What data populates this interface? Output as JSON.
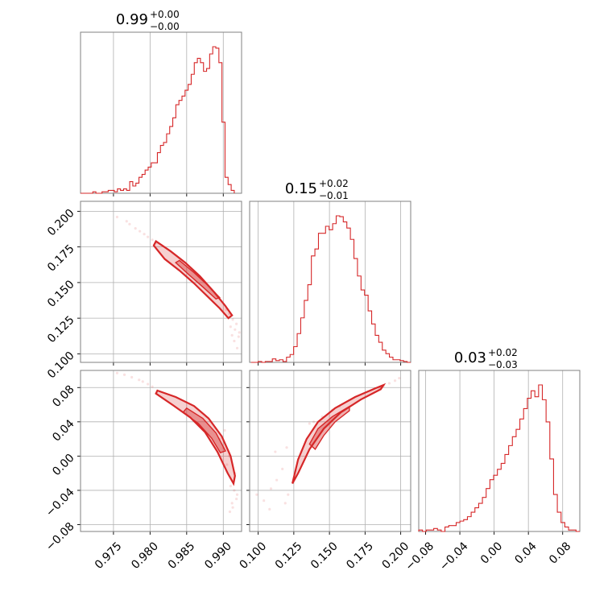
{
  "chart_data": {
    "type": "corner",
    "color": "#d62728",
    "parameters": [
      {
        "title": {
          "value": "0.99",
          "plus": "+0.00",
          "minus": "−0.00"
        },
        "range": [
          0.9705,
          0.9925
        ],
        "ticks": [
          0.975,
          0.98,
          0.985,
          0.99
        ],
        "tick_labels": [
          "0.975",
          "0.980",
          "0.985",
          "0.990"
        ]
      },
      {
        "title": {
          "value": "0.15",
          "plus": "+0.02",
          "minus": "−0.01"
        },
        "range": [
          0.094,
          0.207
        ],
        "ticks": [
          0.1,
          0.125,
          0.15,
          0.175,
          0.2
        ],
        "tick_labels": [
          "0.100",
          "0.125",
          "0.150",
          "0.175",
          "0.200"
        ]
      },
      {
        "title": {
          "value": "0.03",
          "plus": "+0.02",
          "minus": "−0.03"
        },
        "range": [
          -0.088,
          0.1
        ],
        "ticks": [
          -0.08,
          -0.04,
          0.0,
          0.04,
          0.08
        ],
        "tick_labels": [
          "−0.08",
          "−0.04",
          "0.00",
          "0.04",
          "0.08"
        ]
      }
    ],
    "histograms": [
      {
        "param": 0,
        "edges": [
          0.9705,
          0.9915
        ],
        "counts": [
          0,
          0,
          0,
          0,
          1,
          0,
          0,
          1,
          1,
          2,
          2,
          1,
          3,
          2,
          3,
          2,
          8,
          5,
          7,
          11,
          13,
          16,
          18,
          21,
          21,
          28,
          33,
          35,
          41,
          46,
          52,
          61,
          64,
          67,
          71,
          75,
          82,
          90,
          93,
          90,
          84,
          86,
          96,
          101,
          100,
          90,
          49,
          11,
          6,
          2
        ]
      },
      {
        "param": 1,
        "edges": [
          0.095,
          0.207
        ],
        "counts": [
          0,
          0,
          1,
          0,
          1,
          1,
          4,
          2,
          3,
          1,
          6,
          9,
          18,
          33,
          51,
          71,
          89,
          122,
          130,
          148,
          148,
          156,
          152,
          159,
          168,
          167,
          161,
          154,
          141,
          119,
          99,
          83,
          77,
          59,
          44,
          31,
          23,
          14,
          10,
          6,
          3,
          3,
          2,
          1,
          0
        ]
      },
      {
        "param": 2,
        "edges": [
          -0.088,
          0.1
        ],
        "counts": [
          1,
          0,
          1,
          1,
          2,
          1,
          0,
          3,
          4,
          4,
          6,
          7,
          8,
          10,
          13,
          16,
          19,
          23,
          29,
          35,
          38,
          42,
          46,
          52,
          58,
          64,
          69,
          76,
          83,
          90,
          95,
          91,
          99,
          89,
          74,
          49,
          25,
          13,
          6,
          3,
          1,
          1,
          0
        ]
      }
    ],
    "scatter_panels": [
      {
        "x_param": 0,
        "y_param": 1,
        "points": [
          [
            0.9755,
            0.196
          ],
          [
            0.9768,
            0.193
          ],
          [
            0.9772,
            0.191
          ],
          [
            0.978,
            0.188
          ],
          [
            0.9786,
            0.186
          ],
          [
            0.9792,
            0.184
          ],
          [
            0.9797,
            0.182
          ],
          [
            0.9803,
            0.18
          ],
          [
            0.9808,
            0.178
          ],
          [
            0.9913,
            0.124
          ],
          [
            0.9918,
            0.121
          ],
          [
            0.9916,
            0.117
          ],
          [
            0.9921,
            0.112
          ],
          [
            0.9908,
            0.128
          ],
          [
            0.9915,
            0.109
          ],
          [
            0.9919,
            0.104
          ],
          [
            0.991,
            0.119
          ],
          [
            0.9904,
            0.131
          ],
          [
            0.9922,
            0.115
          ],
          [
            0.9912,
            0.113
          ]
        ],
        "outer": [
          [
            0.9808,
            0.179
          ],
          [
            0.9828,
            0.172
          ],
          [
            0.9848,
            0.164
          ],
          [
            0.9868,
            0.1545
          ],
          [
            0.9888,
            0.143
          ],
          [
            0.9903,
            0.1335
          ],
          [
            0.9912,
            0.127
          ],
          [
            0.9907,
            0.125
          ],
          [
            0.9895,
            0.132
          ],
          [
            0.9878,
            0.1405
          ],
          [
            0.986,
            0.1495
          ],
          [
            0.984,
            0.1585
          ],
          [
            0.982,
            0.1665
          ],
          [
            0.9805,
            0.176
          ]
        ],
        "inner": [
          [
            0.984,
            0.1655
          ],
          [
            0.986,
            0.157
          ],
          [
            0.988,
            0.1475
          ],
          [
            0.9895,
            0.1395
          ],
          [
            0.989,
            0.1385
          ],
          [
            0.9873,
            0.1465
          ],
          [
            0.9853,
            0.1555
          ],
          [
            0.9835,
            0.164
          ]
        ]
      },
      {
        "x_param": 0,
        "y_param": 2,
        "points": [
          [
            0.9755,
            0.097
          ],
          [
            0.9765,
            0.095
          ],
          [
            0.9775,
            0.092
          ],
          [
            0.9785,
            0.089
          ],
          [
            0.979,
            0.087
          ],
          [
            0.9797,
            0.084
          ],
          [
            0.9803,
            0.081
          ],
          [
            0.9915,
            -0.04
          ],
          [
            0.9918,
            -0.05
          ],
          [
            0.9913,
            -0.06
          ],
          [
            0.9919,
            -0.045
          ],
          [
            0.991,
            -0.035
          ],
          [
            0.9905,
            -0.01
          ],
          [
            0.99,
            0.01
          ],
          [
            0.9895,
            0.02
          ],
          [
            0.9908,
            0.0
          ],
          [
            0.9902,
            0.03
          ],
          [
            0.9916,
            -0.02
          ],
          [
            0.9912,
            -0.055
          ],
          [
            0.9909,
            -0.065
          ]
        ],
        "outer": [
          [
            0.981,
            0.0765
          ],
          [
            0.9835,
            0.069
          ],
          [
            0.986,
            0.0585
          ],
          [
            0.988,
            0.044
          ],
          [
            0.9898,
            0.023
          ],
          [
            0.991,
            0.0
          ],
          [
            0.9916,
            -0.023
          ],
          [
            0.9914,
            -0.032
          ],
          [
            0.9906,
            -0.02
          ],
          [
            0.9892,
            0.005
          ],
          [
            0.9875,
            0.028
          ],
          [
            0.9855,
            0.045
          ],
          [
            0.9832,
            0.059
          ],
          [
            0.9808,
            0.073
          ]
        ],
        "inner": [
          [
            0.985,
            0.056
          ],
          [
            0.9872,
            0.044
          ],
          [
            0.989,
            0.027
          ],
          [
            0.9903,
            0.006
          ],
          [
            0.9896,
            0.004
          ],
          [
            0.9884,
            0.021
          ],
          [
            0.9866,
            0.038
          ],
          [
            0.9845,
            0.051
          ]
        ]
      },
      {
        "x_param": 1,
        "y_param": 2,
        "points": [
          [
            0.099,
            -0.045
          ],
          [
            0.104,
            -0.052
          ],
          [
            0.109,
            -0.038
          ],
          [
            0.113,
            -0.028
          ],
          [
            0.117,
            -0.015
          ],
          [
            0.108,
            -0.062
          ],
          [
            0.112,
            0.005
          ],
          [
            0.12,
            0.01
          ],
          [
            0.119,
            -0.055
          ],
          [
            0.121,
            -0.045
          ],
          [
            0.188,
            0.082
          ],
          [
            0.192,
            0.085
          ],
          [
            0.196,
            0.088
          ],
          [
            0.199,
            0.091
          ],
          [
            0.185,
            0.079
          ],
          [
            0.139,
            0.04
          ],
          [
            0.145,
            0.046
          ],
          [
            0.152,
            0.054
          ],
          [
            0.157,
            0.058
          ],
          [
            0.136,
            0.038
          ]
        ],
        "outer": [
          [
            0.124,
            -0.032
          ],
          [
            0.128,
            -0.004
          ],
          [
            0.134,
            0.02
          ],
          [
            0.142,
            0.04
          ],
          [
            0.154,
            0.056
          ],
          [
            0.168,
            0.069
          ],
          [
            0.182,
            0.079
          ],
          [
            0.188,
            0.083
          ],
          [
            0.186,
            0.078
          ],
          [
            0.172,
            0.066
          ],
          [
            0.158,
            0.051
          ],
          [
            0.146,
            0.032
          ],
          [
            0.136,
            0.008
          ],
          [
            0.128,
            -0.02
          ]
        ],
        "inner": [
          [
            0.136,
            0.014
          ],
          [
            0.142,
            0.032
          ],
          [
            0.152,
            0.046
          ],
          [
            0.164,
            0.058
          ],
          [
            0.164,
            0.053
          ],
          [
            0.154,
            0.04
          ],
          [
            0.146,
            0.024
          ],
          [
            0.14,
            0.008
          ]
        ]
      }
    ]
  }
}
